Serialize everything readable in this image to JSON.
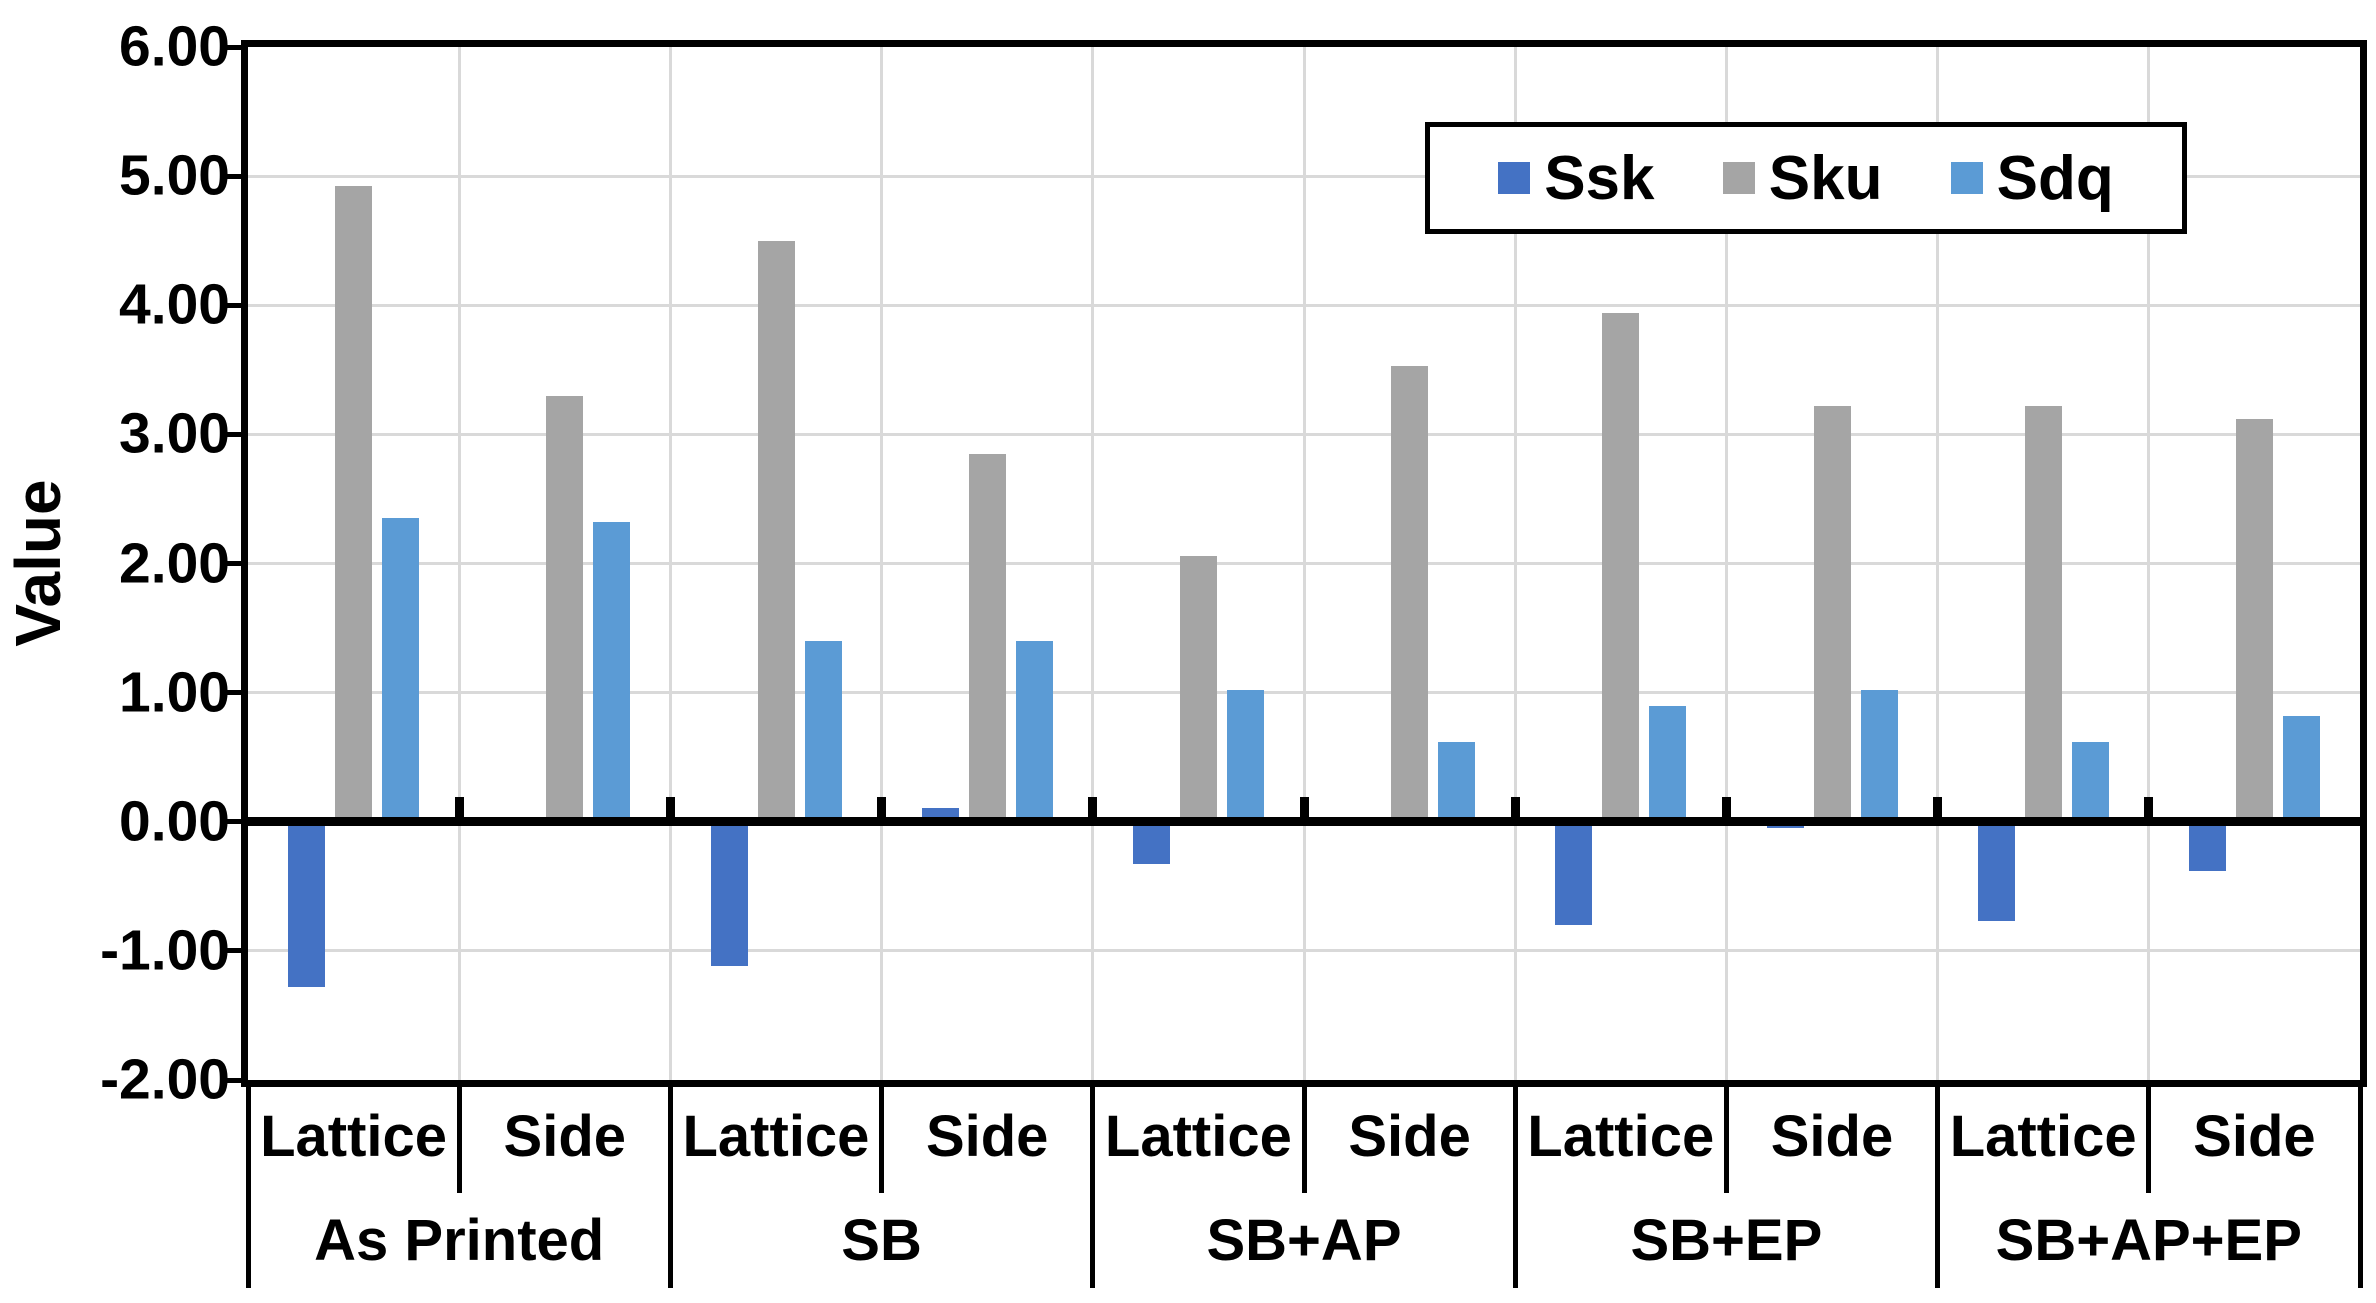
{
  "y_axis": {
    "label": "Value",
    "tick_labels": [
      "6.00",
      "5.00",
      "4.00",
      "3.00",
      "2.00",
      "1.00",
      "0.00",
      "-1.00",
      "-2.00"
    ]
  },
  "x_axis": {
    "subgroup_labels": [
      "Lattice",
      "Side",
      "Lattice",
      "Side",
      "Lattice",
      "Side",
      "Lattice",
      "Side",
      "Lattice",
      "Side"
    ],
    "group_labels": [
      "As Printed",
      "SB",
      "SB+AP",
      "SB+EP",
      "SB+AP+EP"
    ]
  },
  "legend": {
    "entries": [
      {
        "label": "Ssk",
        "color": "#4472C4"
      },
      {
        "label": "Sku",
        "color": "#A5A5A5"
      },
      {
        "label": "Sdq",
        "color": "#5B9BD5"
      }
    ],
    "position": "top-right"
  },
  "chart_data": {
    "type": "bar",
    "title": "",
    "xlabel": "",
    "ylabel": "Value",
    "ylim": [
      -2.0,
      6.0
    ],
    "ytick_step": 1.0,
    "grid": true,
    "legend_position": "top-right",
    "groups": [
      "As Printed",
      "SB",
      "SB+AP",
      "SB+EP",
      "SB+AP+EP"
    ],
    "subgroups": [
      "Lattice",
      "Side"
    ],
    "categories": [
      "As Printed / Lattice",
      "As Printed / Side",
      "SB / Lattice",
      "SB / Side",
      "SB+AP / Lattice",
      "SB+AP / Side",
      "SB+EP / Lattice",
      "SB+EP / Side",
      "SB+AP+EP / Lattice",
      "SB+AP+EP / Side"
    ],
    "series": [
      {
        "name": "Ssk",
        "color": "#4472C4",
        "values": [
          -1.28,
          0.0,
          -1.12,
          0.11,
          -0.33,
          0.0,
          -0.8,
          -0.05,
          -0.77,
          -0.38
        ]
      },
      {
        "name": "Sku",
        "color": "#A5A5A5",
        "values": [
          4.92,
          3.3,
          4.5,
          2.85,
          2.06,
          3.53,
          3.94,
          3.22,
          3.22,
          3.12
        ]
      },
      {
        "name": "Sdq",
        "color": "#5B9BD5",
        "values": [
          2.35,
          2.32,
          1.4,
          1.4,
          1.02,
          0.62,
          0.9,
          1.02,
          0.62,
          0.82
        ]
      }
    ]
  }
}
